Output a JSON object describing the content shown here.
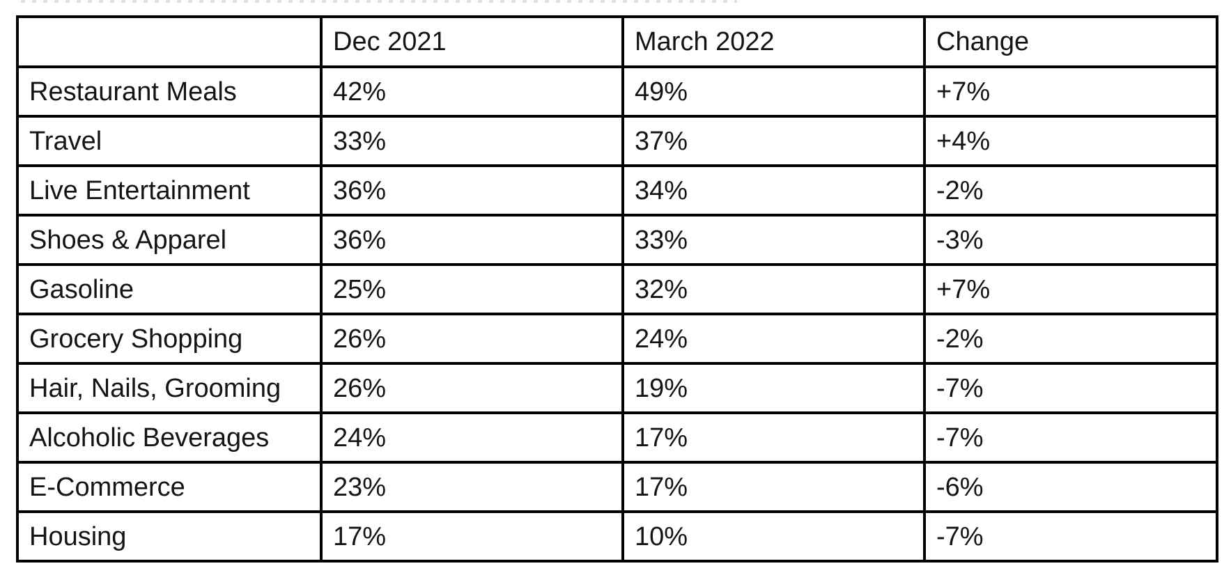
{
  "colors": {
    "border": "#000000",
    "text": "#141414",
    "background": "#ffffff",
    "cropped_text": "#dcdcdc"
  },
  "table": {
    "headers": [
      "",
      "Dec 2021",
      "March 2022",
      "Change"
    ],
    "rows": [
      {
        "category": "Restaurant Meals",
        "dec": "42%",
        "march": "49%",
        "change": "+7%"
      },
      {
        "category": "Travel",
        "dec": "33%",
        "march": "37%",
        "change": "+4%"
      },
      {
        "category": "Live Entertainment",
        "dec": "36%",
        "march": "34%",
        "change": "-2%"
      },
      {
        "category": "Shoes & Apparel",
        "dec": "36%",
        "march": "33%",
        "change": "-3%"
      },
      {
        "category": "Gasoline",
        "dec": "25%",
        "march": "32%",
        "change": "+7%"
      },
      {
        "category": "Grocery Shopping",
        "dec": "26%",
        "march": "24%",
        "change": "-2%"
      },
      {
        "category": "Hair, Nails, Grooming",
        "dec": "26%",
        "march": "19%",
        "change": "-7%"
      },
      {
        "category": "Alcoholic Beverages",
        "dec": "24%",
        "march": "17%",
        "change": "-7%"
      },
      {
        "category": "E-Commerce",
        "dec": "23%",
        "march": "17%",
        "change": "-6%"
      },
      {
        "category": "Housing",
        "dec": "17%",
        "march": "10%",
        "change": "-7%"
      }
    ]
  },
  "chart_data": {
    "type": "table",
    "columns": [
      "",
      "Dec 2021",
      "March 2022",
      "Change"
    ],
    "categories": [
      "Restaurant Meals",
      "Travel",
      "Live Entertainment",
      "Shoes & Apparel",
      "Gasoline",
      "Grocery Shopping",
      "Hair, Nails, Grooming",
      "Alcoholic Beverages",
      "E-Commerce",
      "Housing"
    ],
    "series": [
      {
        "name": "Dec 2021",
        "values": [
          42,
          33,
          36,
          36,
          25,
          26,
          26,
          24,
          23,
          17
        ]
      },
      {
        "name": "March 2022",
        "values": [
          49,
          37,
          34,
          33,
          32,
          24,
          19,
          17,
          17,
          10
        ]
      },
      {
        "name": "Change",
        "values": [
          7,
          4,
          -2,
          -3,
          7,
          -2,
          -7,
          -7,
          -6,
          -7
        ]
      }
    ]
  }
}
